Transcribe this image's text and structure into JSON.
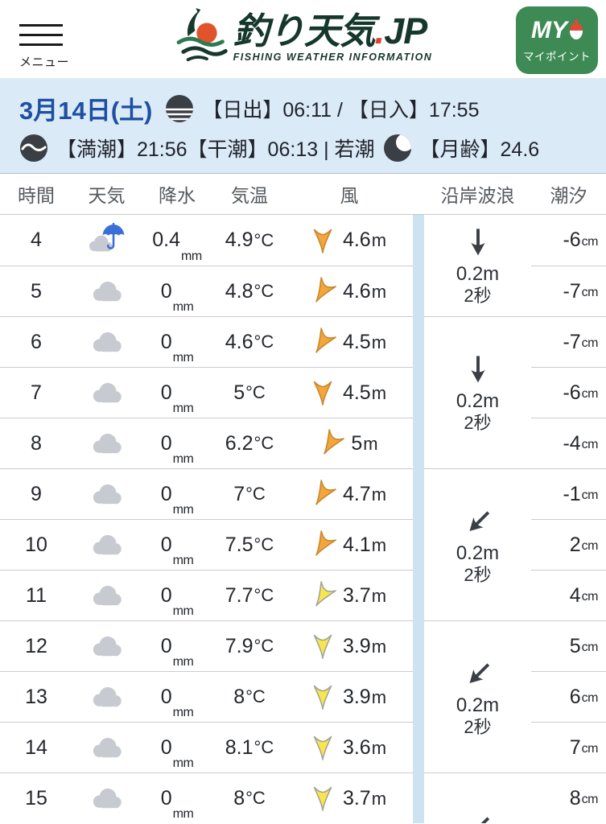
{
  "colors": {
    "accent_blue": "#1d50a2",
    "infobar_bg": "#dbeaf7",
    "my_button_green": "#3d8a55",
    "logo_green": "#15372c",
    "logo_dot_red": "#df412a",
    "wind_orange": "#f2a63d",
    "wind_yellow": "#f9e64d",
    "divider_stripe": "#cde3f2"
  },
  "header": {
    "menu_label": "メニュー",
    "logo_title_main": "釣り天気",
    "logo_title_dot": ".",
    "logo_title_suffix": "JP",
    "logo_subtitle": "FISHING WEATHER INFORMATION",
    "my_button_top": "MY",
    "my_button_bottom": "マイポイント"
  },
  "info_bar": {
    "date": "3月14日(土)",
    "sun_line": "【日出】06:11 / 【日入】17:55",
    "tide_line": "【満潮】21:56【干潮】06:13 | 若潮",
    "moon_line": "【月齢】24.6"
  },
  "table": {
    "columns": [
      "時間",
      "天気",
      "降水",
      "気温",
      "風",
      "沿岸波浪",
      "潮汐"
    ],
    "units": {
      "precip": "mm",
      "temp": "°C",
      "wind": "m",
      "tide": "cm"
    },
    "rows": [
      {
        "hour": "4",
        "weather": "rain-cloud",
        "precip": "0.4",
        "temp": "4.9",
        "wind_dir": "down",
        "wind_color": "orange",
        "wind": "4.6",
        "tide": "-6"
      },
      {
        "hour": "5",
        "weather": "cloud",
        "precip": "0",
        "temp": "4.8",
        "wind_dir": "down-left",
        "wind_color": "orange",
        "wind": "4.6",
        "tide": "-7"
      },
      {
        "hour": "6",
        "weather": "cloud",
        "precip": "0",
        "temp": "4.6",
        "wind_dir": "down-left",
        "wind_color": "orange",
        "wind": "4.5",
        "tide": "-7"
      },
      {
        "hour": "7",
        "weather": "cloud",
        "precip": "0",
        "temp": "5",
        "wind_dir": "down",
        "wind_color": "orange",
        "wind": "4.5",
        "tide": "-6"
      },
      {
        "hour": "8",
        "weather": "cloud",
        "precip": "0",
        "temp": "6.2",
        "wind_dir": "down-left",
        "wind_color": "orange",
        "wind": "5",
        "tide": "-4"
      },
      {
        "hour": "9",
        "weather": "cloud",
        "precip": "0",
        "temp": "7",
        "wind_dir": "down-left",
        "wind_color": "orange",
        "wind": "4.7",
        "tide": "-1"
      },
      {
        "hour": "10",
        "weather": "cloud",
        "precip": "0",
        "temp": "7.5",
        "wind_dir": "down-left",
        "wind_color": "orange",
        "wind": "4.1",
        "tide": "2"
      },
      {
        "hour": "11",
        "weather": "cloud",
        "precip": "0",
        "temp": "7.7",
        "wind_dir": "down-left",
        "wind_color": "yellow",
        "wind": "3.7",
        "tide": "4"
      },
      {
        "hour": "12",
        "weather": "cloud",
        "precip": "0",
        "temp": "7.9",
        "wind_dir": "down",
        "wind_color": "yellow",
        "wind": "3.9",
        "tide": "5"
      },
      {
        "hour": "13",
        "weather": "cloud",
        "precip": "0",
        "temp": "8",
        "wind_dir": "down",
        "wind_color": "yellow",
        "wind": "3.9",
        "tide": "6"
      },
      {
        "hour": "14",
        "weather": "cloud",
        "precip": "0",
        "temp": "8.1",
        "wind_dir": "down",
        "wind_color": "yellow",
        "wind": "3.6",
        "tide": "7"
      },
      {
        "hour": "15",
        "weather": "cloud",
        "precip": "0",
        "temp": "8",
        "wind_dir": "down",
        "wind_color": "yellow",
        "wind": "3.7",
        "tide": "8"
      }
    ],
    "wave_groups": [
      {
        "span": 2,
        "dir": "down",
        "height": "0.2m",
        "period": "2秒"
      },
      {
        "span": 3,
        "dir": "down",
        "height": "0.2m",
        "period": "2秒"
      },
      {
        "span": 3,
        "dir": "down-left",
        "height": "0.2m",
        "period": "2秒"
      },
      {
        "span": 3,
        "dir": "down-left",
        "height": "0.2m",
        "period": "2秒"
      },
      {
        "span": 1,
        "dir": "down-left",
        "height": "",
        "period": ""
      }
    ]
  }
}
